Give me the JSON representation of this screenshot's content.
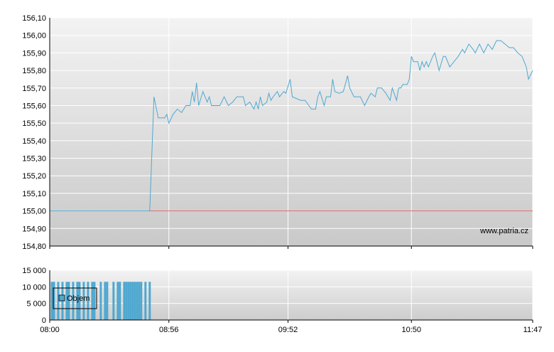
{
  "watermark": "www.patria.cz",
  "colors": {
    "price_line": "#4fa8d0",
    "reference_line": "#e06060",
    "volume_bar": "#4fa8d0",
    "grid": "#ffffff",
    "axis": "#000000"
  },
  "x_ticks": [
    "08:00",
    "08:56",
    "09:52",
    "10:50",
    "11:47"
  ],
  "chart_data": [
    {
      "type": "line",
      "title": "",
      "xlabel": "",
      "ylabel": "",
      "x_unit": "minutes of session",
      "xlim": [
        "08:00",
        "11:47"
      ],
      "ylim": [
        154.8,
        156.1
      ],
      "y_ticks": [
        "154,80",
        "154,90",
        "155,00",
        "155,10",
        "155,20",
        "155,30",
        "155,40",
        "155,50",
        "155,60",
        "155,70",
        "155,80",
        "155,90",
        "156,00",
        "156,10"
      ],
      "reference_value": 155.0,
      "grid": true,
      "series": [
        {
          "points": [
            [
              "08:00",
              155.0
            ],
            [
              "08:47",
              155.0
            ],
            [
              "08:49",
              155.65
            ],
            [
              "08:51",
              155.53
            ],
            [
              "08:54",
              155.53
            ],
            [
              "08:55",
              155.55
            ],
            [
              "08:56",
              155.5
            ],
            [
              "08:58",
              155.55
            ],
            [
              "09:00",
              155.58
            ],
            [
              "09:02",
              155.56
            ],
            [
              "09:04",
              155.6
            ],
            [
              "09:06",
              155.6
            ],
            [
              "09:07",
              155.68
            ],
            [
              "09:08",
              155.62
            ],
            [
              "09:09",
              155.73
            ],
            [
              "09:10",
              155.6
            ],
            [
              "09:12",
              155.68
            ],
            [
              "09:14",
              155.62
            ],
            [
              "09:15",
              155.65
            ],
            [
              "09:16",
              155.6
            ],
            [
              "09:20",
              155.6
            ],
            [
              "09:22",
              155.65
            ],
            [
              "09:24",
              155.6
            ],
            [
              "09:26",
              155.62
            ],
            [
              "09:28",
              155.65
            ],
            [
              "09:31",
              155.65
            ],
            [
              "09:32",
              155.6
            ],
            [
              "09:34",
              155.62
            ],
            [
              "09:36",
              155.58
            ],
            [
              "09:37",
              155.62
            ],
            [
              "09:38",
              155.58
            ],
            [
              "09:39",
              155.65
            ],
            [
              "09:40",
              155.6
            ],
            [
              "09:42",
              155.62
            ],
            [
              "09:43",
              155.67
            ],
            [
              "09:44",
              155.63
            ],
            [
              "09:45",
              155.65
            ],
            [
              "09:47",
              155.68
            ],
            [
              "09:48",
              155.65
            ],
            [
              "09:50",
              155.68
            ],
            [
              "09:51",
              155.67
            ],
            [
              "09:53",
              155.75
            ],
            [
              "09:54",
              155.65
            ],
            [
              "09:58",
              155.63
            ],
            [
              "10:00",
              155.63
            ],
            [
              "10:03",
              155.58
            ],
            [
              "10:05",
              155.58
            ],
            [
              "10:06",
              155.65
            ],
            [
              "10:07",
              155.68
            ],
            [
              "10:09",
              155.6
            ],
            [
              "10:10",
              155.65
            ],
            [
              "10:12",
              155.65
            ],
            [
              "10:13",
              155.75
            ],
            [
              "10:14",
              155.68
            ],
            [
              "10:16",
              155.67
            ],
            [
              "10:18",
              155.68
            ],
            [
              "10:20",
              155.77
            ],
            [
              "10:21",
              155.7
            ],
            [
              "10:23",
              155.65
            ],
            [
              "10:26",
              155.65
            ],
            [
              "10:28",
              155.6
            ],
            [
              "10:30",
              155.65
            ],
            [
              "10:31",
              155.67
            ],
            [
              "10:33",
              155.65
            ],
            [
              "10:34",
              155.7
            ],
            [
              "10:36",
              155.7
            ],
            [
              "10:38",
              155.67
            ],
            [
              "10:40",
              155.63
            ],
            [
              "10:41",
              155.7
            ],
            [
              "10:43",
              155.63
            ],
            [
              "10:44",
              155.7
            ],
            [
              "10:45",
              155.7
            ],
            [
              "10:46",
              155.72
            ],
            [
              "10:48",
              155.72
            ],
            [
              "10:49",
              155.75
            ],
            [
              "10:50",
              155.88
            ],
            [
              "10:51",
              155.85
            ],
            [
              "10:53",
              155.85
            ],
            [
              "10:54",
              155.8
            ],
            [
              "10:55",
              155.85
            ],
            [
              "10:56",
              155.82
            ],
            [
              "10:57",
              155.85
            ],
            [
              "10:58",
              155.82
            ],
            [
              "11:00",
              155.88
            ],
            [
              "11:01",
              155.9
            ],
            [
              "11:03",
              155.8
            ],
            [
              "11:05",
              155.88
            ],
            [
              "11:06",
              155.88
            ],
            [
              "11:08",
              155.82
            ],
            [
              "11:12",
              155.88
            ],
            [
              "11:14",
              155.92
            ],
            [
              "11:15",
              155.9
            ],
            [
              "11:17",
              155.95
            ],
            [
              "11:19",
              155.92
            ],
            [
              "11:20",
              155.9
            ],
            [
              "11:22",
              155.95
            ],
            [
              "11:24",
              155.9
            ],
            [
              "11:26",
              155.95
            ],
            [
              "11:28",
              155.92
            ],
            [
              "11:30",
              155.97
            ],
            [
              "11:32",
              155.97
            ],
            [
              "11:34",
              155.95
            ],
            [
              "11:36",
              155.93
            ],
            [
              "11:38",
              155.93
            ],
            [
              "11:40",
              155.9
            ],
            [
              "11:42",
              155.88
            ],
            [
              "11:44",
              155.82
            ],
            [
              "11:45",
              155.75
            ],
            [
              "11:47",
              155.8
            ]
          ]
        }
      ]
    },
    {
      "type": "bar",
      "title": "",
      "xlabel": "",
      "ylabel": "",
      "ylim": [
        0,
        15000
      ],
      "y_ticks": [
        "0",
        "5 000",
        "10 000",
        "15 000"
      ],
      "grid": true,
      "legend": {
        "placement": "top-left",
        "label": "Objem"
      },
      "series": [
        {
          "name": "Objem",
          "bars": [
            [
              "08:01",
              11500
            ],
            [
              "08:02",
              11500
            ],
            [
              "08:04",
              11500
            ],
            [
              "08:06",
              11500
            ],
            [
              "08:08",
              11500
            ],
            [
              "08:09",
              11500
            ],
            [
              "08:11",
              11500
            ],
            [
              "08:13",
              11500
            ],
            [
              "08:14",
              11500
            ],
            [
              "08:16",
              11500
            ],
            [
              "08:18",
              11500
            ],
            [
              "08:20",
              11500
            ],
            [
              "08:21",
              11500
            ],
            [
              "08:24",
              11500
            ],
            [
              "08:26",
              11500
            ],
            [
              "08:27",
              11500
            ],
            [
              "08:30",
              11500
            ],
            [
              "08:32",
              11500
            ],
            [
              "08:33",
              11500
            ],
            [
              "08:35",
              11500
            ],
            [
              "08:36",
              11500
            ],
            [
              "08:37",
              11500
            ],
            [
              "08:38",
              11500
            ],
            [
              "08:39",
              11500
            ],
            [
              "08:40",
              11500
            ],
            [
              "08:41",
              11500
            ],
            [
              "08:42",
              11500
            ],
            [
              "08:43",
              11500
            ],
            [
              "08:45",
              11500
            ],
            [
              "08:47",
              11500
            ]
          ]
        }
      ]
    }
  ]
}
